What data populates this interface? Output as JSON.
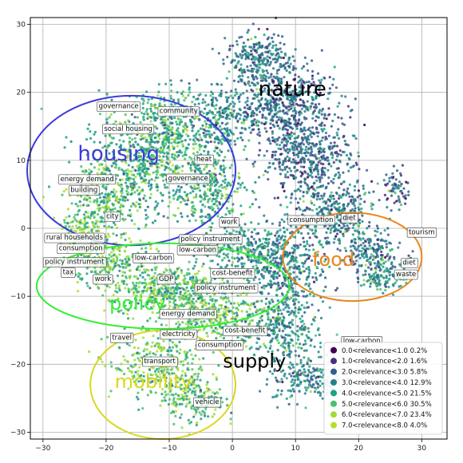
{
  "chart_data": {
    "type": "scatter",
    "xlim": [
      -32,
      34
    ],
    "ylim": [
      -31,
      31
    ],
    "xticks": [
      -30,
      -20,
      -10,
      0,
      10,
      20,
      30
    ],
    "yticks": [
      -30,
      -20,
      -10,
      0,
      10,
      20,
      30
    ],
    "grid": true,
    "legend": {
      "placement": "lower-right",
      "entries": [
        {
          "label": "0.0<relevance<1.0 0.2%",
          "color": "#440154"
        },
        {
          "label": "1.0<relevance<2.0 1.6%",
          "color": "#46327e"
        },
        {
          "label": "2.0<relevance<3.0 5.8%",
          "color": "#365c8d"
        },
        {
          "label": "3.0<relevance<4.0 12.9%",
          "color": "#277f8e"
        },
        {
          "label": "4.0<relevance<5.0 21.5%",
          "color": "#1fa187"
        },
        {
          "label": "5.0<relevance<6.0 30.5%",
          "color": "#4ac16d"
        },
        {
          "label": "6.0<relevance<7.0 23.4%",
          "color": "#a0da39"
        },
        {
          "label": "7.0<relevance<8.0 4.0%",
          "color": "#b5de2b"
        }
      ]
    },
    "regions": [
      {
        "label": "housing",
        "color": "#3b3bdc",
        "text_x": -18,
        "text_y": 10,
        "cx": -16,
        "cy": 8.5,
        "rx": 16.5,
        "ry": 11,
        "text_size": 26
      },
      {
        "label": "nature",
        "color": "#000000",
        "text_x": 9.5,
        "text_y": 19.5,
        "text_size": 26
      },
      {
        "label": "food",
        "color": "#e8861a",
        "text_x": 16,
        "text_y": -5.5,
        "cx": 19,
        "cy": -4.2,
        "rx": 11,
        "ry": 6.5,
        "text_size": 24
      },
      {
        "label": "policy",
        "color": "#33ee33",
        "text_x": -15,
        "text_y": -12,
        "cx": -11,
        "cy": -8.5,
        "rx": 20,
        "ry": 6.3,
        "text_size": 24
      },
      {
        "label": "supply",
        "color": "#000000",
        "text_x": 3.5,
        "text_y": -20.5,
        "text_size": 24
      },
      {
        "label": "mobility",
        "color": "#d8d820",
        "text_x": -12.5,
        "text_y": -23.5,
        "cx": -11,
        "cy": -23,
        "rx": 11.5,
        "ry": 8,
        "text_size": 24
      }
    ],
    "word_labels": [
      {
        "text": "governance",
        "x": -18,
        "y": 18
      },
      {
        "text": "community",
        "x": -8.5,
        "y": 17.3
      },
      {
        "text": "social housing",
        "x": -16.5,
        "y": 14.7
      },
      {
        "text": "heat",
        "x": -4.5,
        "y": 10.2
      },
      {
        "text": "energy demand",
        "x": -23,
        "y": 7.3
      },
      {
        "text": "governance",
        "x": -7,
        "y": 7.4
      },
      {
        "text": "building",
        "x": -23.5,
        "y": 5.7
      },
      {
        "text": "city",
        "x": -19,
        "y": 1.8
      },
      {
        "text": "work",
        "x": -0.5,
        "y": 1
      },
      {
        "text": "consumption",
        "x": 12.5,
        "y": 1.3
      },
      {
        "text": "diet",
        "x": 18.5,
        "y": 1.6
      },
      {
        "text": "tourism",
        "x": 30,
        "y": -0.5
      },
      {
        "text": "rural households",
        "x": -25,
        "y": -1.3
      },
      {
        "text": "policy instrument",
        "x": -3.5,
        "y": -1.5
      },
      {
        "text": "consumption",
        "x": -24,
        "y": -2.9
      },
      {
        "text": "low-carbon",
        "x": -5.5,
        "y": -3.1
      },
      {
        "text": "low-carbon",
        "x": -12.5,
        "y": -4.3
      },
      {
        "text": "policy instrument",
        "x": -25,
        "y": -4.9
      },
      {
        "text": "diet",
        "x": 28,
        "y": -5
      },
      {
        "text": "tax",
        "x": -26,
        "y": -6.4
      },
      {
        "text": "cost-benefit",
        "x": 0,
        "y": -6.5
      },
      {
        "text": "waste",
        "x": 27.5,
        "y": -6.7
      },
      {
        "text": "work",
        "x": -20.5,
        "y": -7.4
      },
      {
        "text": "GDP",
        "x": -10.5,
        "y": -7.4
      },
      {
        "text": "policy instrument",
        "x": -1,
        "y": -8.7
      },
      {
        "text": "energy demand",
        "x": -7,
        "y": -12.5
      },
      {
        "text": "cost-benefit",
        "x": 2,
        "y": -15
      },
      {
        "text": "electricity",
        "x": -8.5,
        "y": -15.5
      },
      {
        "text": "low-carbon",
        "x": 20.5,
        "y": -16.5
      },
      {
        "text": "travel",
        "x": -17.5,
        "y": -16
      },
      {
        "text": "consumption",
        "x": -2,
        "y": -17.1
      },
      {
        "text": "transport",
        "x": -11.5,
        "y": -19.5
      },
      {
        "text": "vehicle",
        "x": -4,
        "y": -25.5
      }
    ]
  }
}
